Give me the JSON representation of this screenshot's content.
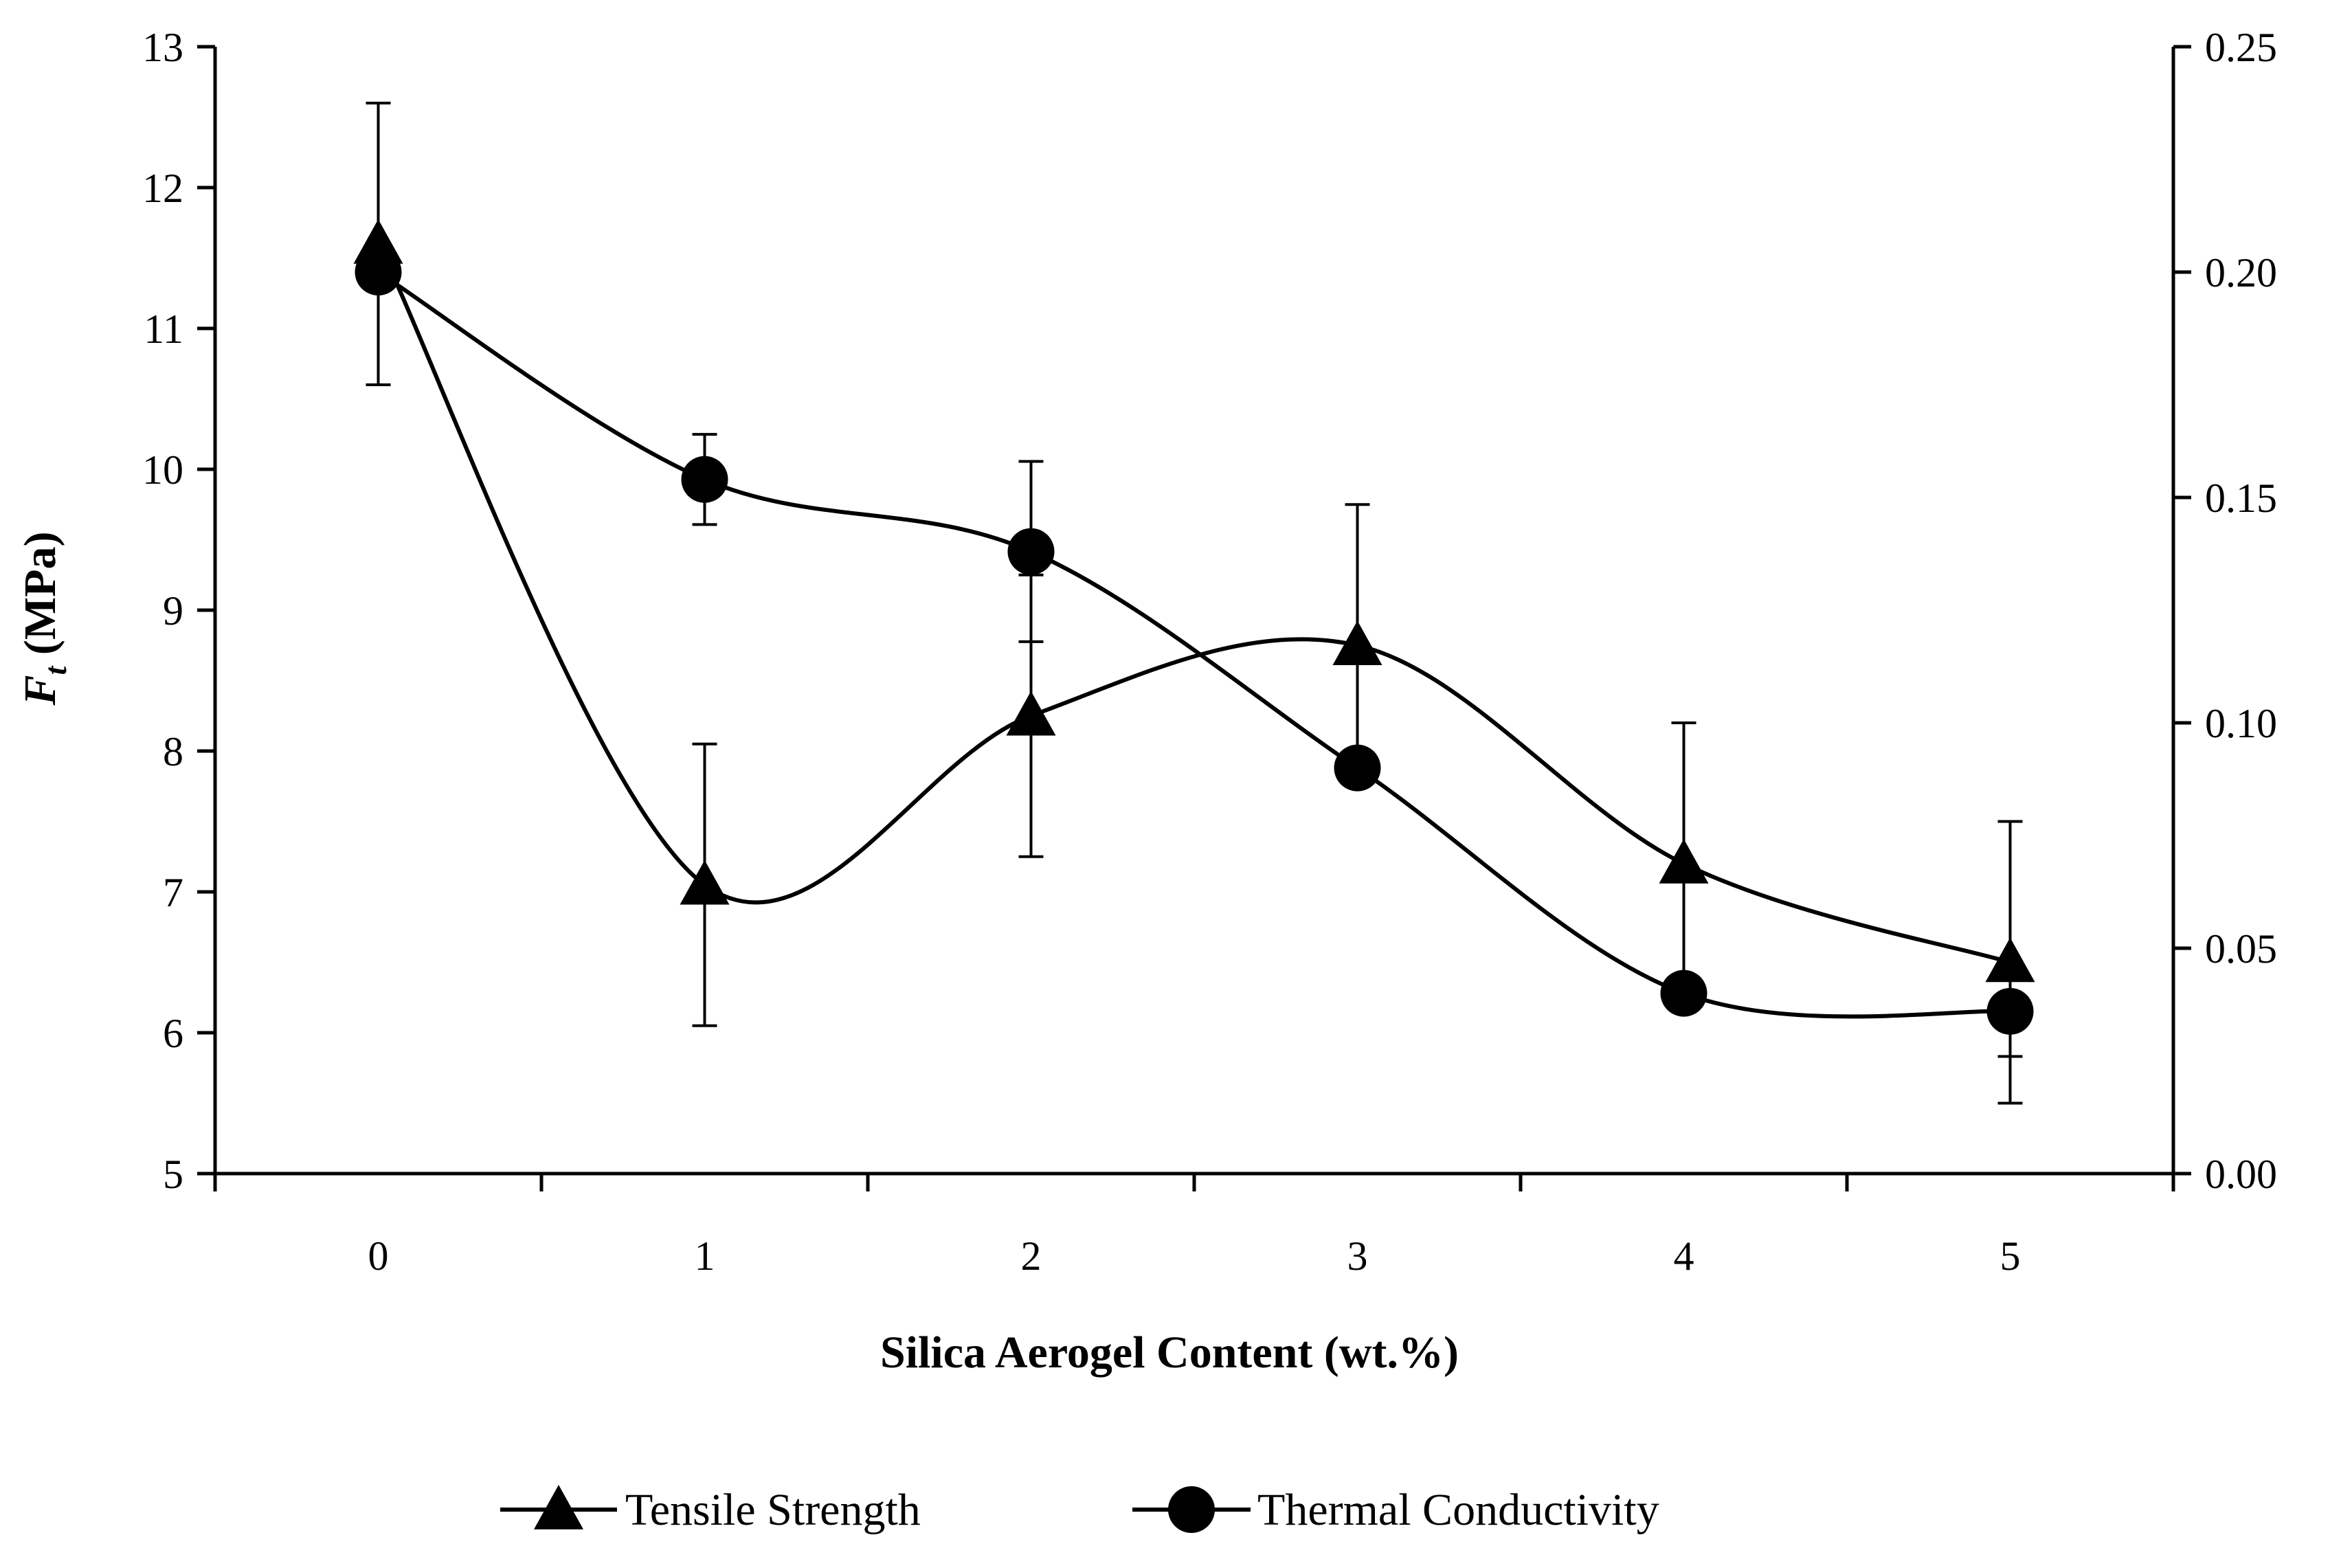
{
  "chart_data": {
    "type": "line",
    "xlabel": "Silica Aerogel Content (wt.%)",
    "ylabel_main": "F",
    "ylabel_sub": "t",
    "ylabel_unit": " (MPa)",
    "x": [
      0,
      1,
      2,
      3,
      4,
      5
    ],
    "x_tick_labels": [
      "0",
      "1",
      "2",
      "3",
      "4",
      "5"
    ],
    "xlim": [
      -0.5,
      5.5
    ],
    "ylim_left": [
      5,
      13
    ],
    "y_ticks_left": [
      "5",
      "6",
      "7",
      "8",
      "9",
      "10",
      "11",
      "12",
      "13"
    ],
    "ylim_right": [
      0,
      0.25
    ],
    "y_ticks_right": [
      "0.00",
      "0.05",
      "0.10",
      "0.15",
      "0.20",
      "0.25"
    ],
    "grid": false,
    "legend_position": "bottom",
    "series": [
      {
        "name": "Tensile Strength",
        "axis": "left",
        "marker": "triangle",
        "values": [
          11.6,
          7.05,
          8.25,
          8.75,
          7.2,
          6.5
        ],
        "error": [
          1.0,
          1.0,
          1.0,
          1.0,
          1.0,
          1.0
        ]
      },
      {
        "name": "Thermal Conductivity",
        "axis": "right",
        "marker": "circle",
        "values": [
          0.2,
          0.154,
          0.138,
          0.09,
          0.04,
          0.036
        ],
        "error": [
          0.0,
          0.01,
          0.02,
          0.0,
          0.0,
          0.01
        ]
      }
    ]
  }
}
